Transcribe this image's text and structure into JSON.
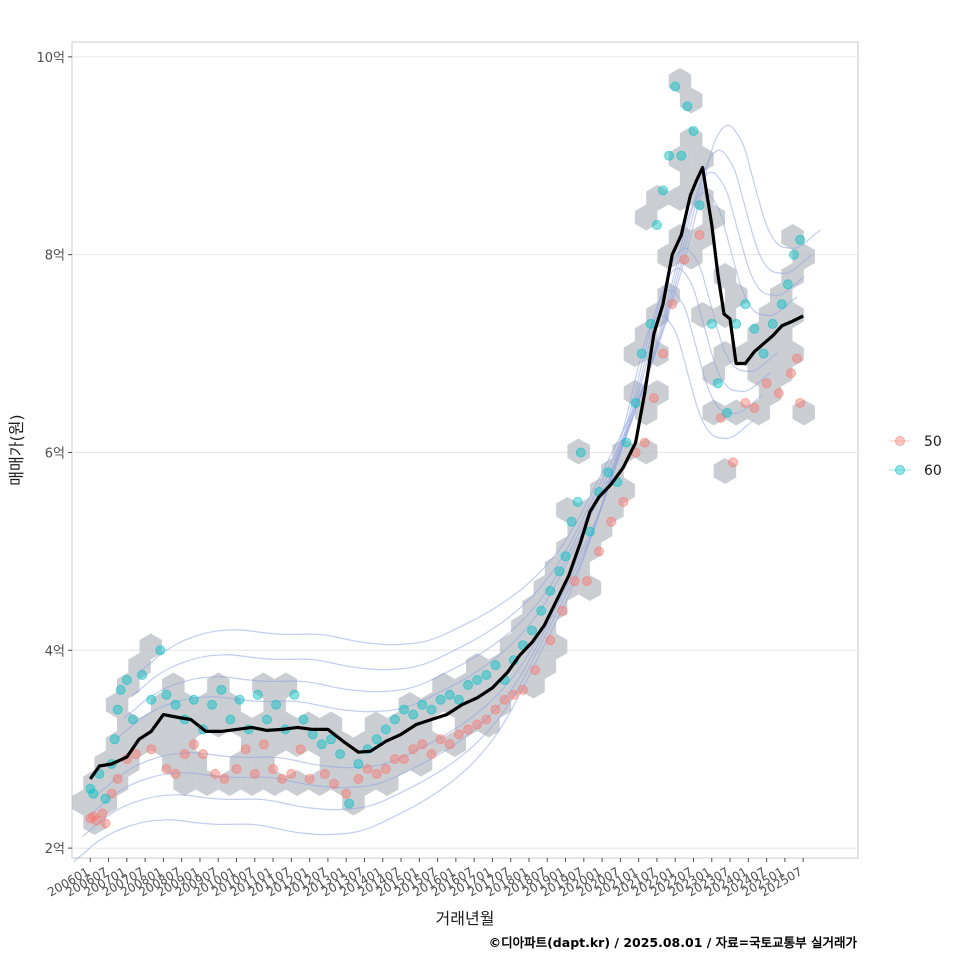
{
  "chart_data": {
    "type": "scatter",
    "xlabel": "거래년월",
    "ylabel": "매매가(원)",
    "caption": "©디아파트(dapt.kr) / 2025.08.01 / 자료=국토교통부 실거래가",
    "x_range": [
      "2005-07",
      "2027-01"
    ],
    "y_range": [
      1.9,
      10.15
    ],
    "y_ticks": [
      {
        "value": 2,
        "label": "2억"
      },
      {
        "value": 4,
        "label": "4억"
      },
      {
        "value": 6,
        "label": "6억"
      },
      {
        "value": 8,
        "label": "8억"
      },
      {
        "value": 10,
        "label": "10억"
      }
    ],
    "x_ticks": [
      {
        "value": "2006-01",
        "label": "200601"
      },
      {
        "value": "2006-07",
        "label": "200607"
      },
      {
        "value": "2007-01",
        "label": "200701"
      },
      {
        "value": "2007-07",
        "label": "200707"
      },
      {
        "value": "2008-01",
        "label": "200801"
      },
      {
        "value": "2008-07",
        "label": "200807"
      },
      {
        "value": "2009-01",
        "label": "200901"
      },
      {
        "value": "2009-07",
        "label": "200907"
      },
      {
        "value": "2010-01",
        "label": "201001"
      },
      {
        "value": "2010-07",
        "label": "201007"
      },
      {
        "value": "2011-01",
        "label": "201101"
      },
      {
        "value": "2011-07",
        "label": "201107"
      },
      {
        "value": "2012-01",
        "label": "201201"
      },
      {
        "value": "2012-07",
        "label": "201207"
      },
      {
        "value": "2013-01",
        "label": "201301"
      },
      {
        "value": "2013-07",
        "label": "201307"
      },
      {
        "value": "2014-01",
        "label": "201401"
      },
      {
        "value": "2014-07",
        "label": "201407"
      },
      {
        "value": "2015-01",
        "label": "201501"
      },
      {
        "value": "2015-07",
        "label": "201507"
      },
      {
        "value": "2016-01",
        "label": "201601"
      },
      {
        "value": "2016-07",
        "label": "201607"
      },
      {
        "value": "2017-01",
        "label": "201701"
      },
      {
        "value": "2017-07",
        "label": "201707"
      },
      {
        "value": "2018-01",
        "label": "201801"
      },
      {
        "value": "2018-07",
        "label": "201807"
      },
      {
        "value": "2019-01",
        "label": "201901"
      },
      {
        "value": "2019-07",
        "label": "201907"
      },
      {
        "value": "2020-01",
        "label": "202001"
      },
      {
        "value": "2020-07",
        "label": "202007"
      },
      {
        "value": "2021-01",
        "label": "202101"
      },
      {
        "value": "2021-07",
        "label": "202107"
      },
      {
        "value": "2022-01",
        "label": "202201"
      },
      {
        "value": "2022-07",
        "label": "202207"
      },
      {
        "value": "2023-01",
        "label": "202301"
      },
      {
        "value": "2023-07",
        "label": "202307"
      },
      {
        "value": "2024-01",
        "label": "202401"
      },
      {
        "value": "2024-07",
        "label": "202407"
      },
      {
        "value": "2025-01",
        "label": "202501"
      },
      {
        "value": "2025-07",
        "label": "202507"
      }
    ],
    "grid": true,
    "legend": {
      "position": "right",
      "title": ""
    },
    "series": [
      {
        "name": "50",
        "color": "#F8766D",
        "points": [
          [
            "2006-01",
            2.3
          ],
          [
            "2006-02",
            2.32
          ],
          [
            "2006-03",
            2.28
          ],
          [
            "2006-05",
            2.35
          ],
          [
            "2006-06",
            2.25
          ],
          [
            "2006-08",
            2.55
          ],
          [
            "2006-10",
            2.7
          ],
          [
            "2007-01",
            2.9
          ],
          [
            "2007-04",
            2.95
          ],
          [
            "2007-09",
            3.0
          ],
          [
            "2008-02",
            2.8
          ],
          [
            "2008-05",
            2.75
          ],
          [
            "2008-08",
            2.95
          ],
          [
            "2008-11",
            3.05
          ],
          [
            "2009-02",
            2.95
          ],
          [
            "2009-06",
            2.75
          ],
          [
            "2009-09",
            2.7
          ],
          [
            "2010-01",
            2.8
          ],
          [
            "2010-04",
            3.0
          ],
          [
            "2010-07",
            2.75
          ],
          [
            "2010-10",
            3.05
          ],
          [
            "2011-01",
            2.8
          ],
          [
            "2011-04",
            2.7
          ],
          [
            "2011-07",
            2.75
          ],
          [
            "2011-10",
            3.0
          ],
          [
            "2012-01",
            2.7
          ],
          [
            "2012-06",
            2.75
          ],
          [
            "2012-09",
            2.65
          ],
          [
            "2013-01",
            2.55
          ],
          [
            "2013-05",
            2.7
          ],
          [
            "2013-08",
            2.8
          ],
          [
            "2013-11",
            2.75
          ],
          [
            "2014-02",
            2.8
          ],
          [
            "2014-05",
            2.9
          ],
          [
            "2014-08",
            2.9
          ],
          [
            "2014-11",
            3.0
          ],
          [
            "2015-02",
            3.05
          ],
          [
            "2015-05",
            2.95
          ],
          [
            "2015-08",
            3.1
          ],
          [
            "2015-11",
            3.05
          ],
          [
            "2016-02",
            3.15
          ],
          [
            "2016-05",
            3.2
          ],
          [
            "2016-08",
            3.25
          ],
          [
            "2016-11",
            3.3
          ],
          [
            "2017-02",
            3.4
          ],
          [
            "2017-05",
            3.5
          ],
          [
            "2017-08",
            3.55
          ],
          [
            "2017-11",
            3.6
          ],
          [
            "2018-03",
            3.8
          ],
          [
            "2018-08",
            4.1
          ],
          [
            "2018-12",
            4.4
          ],
          [
            "2019-04",
            4.7
          ],
          [
            "2019-08",
            4.7
          ],
          [
            "2019-12",
            5.0
          ],
          [
            "2020-04",
            5.3
          ],
          [
            "2020-08",
            5.5
          ],
          [
            "2020-12",
            6.0
          ],
          [
            "2021-03",
            6.1
          ],
          [
            "2021-06",
            6.55
          ],
          [
            "2021-09",
            7.0
          ],
          [
            "2021-12",
            7.5
          ],
          [
            "2022-04",
            7.95
          ],
          [
            "2022-09",
            8.2
          ],
          [
            "2023-04",
            6.35
          ],
          [
            "2023-08",
            5.9
          ],
          [
            "2023-12",
            6.5
          ],
          [
            "2024-03",
            6.45
          ],
          [
            "2024-07",
            6.7
          ],
          [
            "2024-11",
            6.6
          ],
          [
            "2025-03",
            6.8
          ],
          [
            "2025-05",
            6.95
          ],
          [
            "2025-06",
            6.5
          ]
        ]
      },
      {
        "name": "60",
        "color": "#00BFC4",
        "points": [
          [
            "2006-01",
            2.6
          ],
          [
            "2006-02",
            2.55
          ],
          [
            "2006-04",
            2.75
          ],
          [
            "2006-06",
            2.5
          ],
          [
            "2006-08",
            2.85
          ],
          [
            "2006-09",
            3.1
          ],
          [
            "2006-10",
            3.4
          ],
          [
            "2006-11",
            3.6
          ],
          [
            "2007-01",
            3.7
          ],
          [
            "2007-03",
            3.3
          ],
          [
            "2007-06",
            3.75
          ],
          [
            "2007-09",
            3.5
          ],
          [
            "2007-12",
            4.0
          ],
          [
            "2008-02",
            3.55
          ],
          [
            "2008-05",
            3.45
          ],
          [
            "2008-08",
            3.3
          ],
          [
            "2008-11",
            3.5
          ],
          [
            "2009-02",
            3.2
          ],
          [
            "2009-05",
            3.45
          ],
          [
            "2009-08",
            3.6
          ],
          [
            "2009-11",
            3.3
          ],
          [
            "2010-02",
            3.5
          ],
          [
            "2010-05",
            3.2
          ],
          [
            "2010-08",
            3.55
          ],
          [
            "2010-11",
            3.3
          ],
          [
            "2011-02",
            3.45
          ],
          [
            "2011-05",
            3.2
          ],
          [
            "2011-08",
            3.55
          ],
          [
            "2011-11",
            3.3
          ],
          [
            "2012-02",
            3.15
          ],
          [
            "2012-05",
            3.05
          ],
          [
            "2012-08",
            3.1
          ],
          [
            "2012-11",
            2.95
          ],
          [
            "2013-02",
            2.45
          ],
          [
            "2013-05",
            2.85
          ],
          [
            "2013-08",
            3.0
          ],
          [
            "2013-11",
            3.1
          ],
          [
            "2014-02",
            3.2
          ],
          [
            "2014-05",
            3.3
          ],
          [
            "2014-08",
            3.4
          ],
          [
            "2014-11",
            3.35
          ],
          [
            "2015-02",
            3.45
          ],
          [
            "2015-05",
            3.4
          ],
          [
            "2015-08",
            3.5
          ],
          [
            "2015-11",
            3.55
          ],
          [
            "2016-02",
            3.5
          ],
          [
            "2016-05",
            3.65
          ],
          [
            "2016-08",
            3.7
          ],
          [
            "2016-11",
            3.75
          ],
          [
            "2017-02",
            3.85
          ],
          [
            "2017-05",
            3.7
          ],
          [
            "2017-08",
            3.9
          ],
          [
            "2017-11",
            4.05
          ],
          [
            "2018-02",
            4.2
          ],
          [
            "2018-05",
            4.4
          ],
          [
            "2018-08",
            4.6
          ],
          [
            "2018-11",
            4.8
          ],
          [
            "2019-01",
            4.95
          ],
          [
            "2019-03",
            5.3
          ],
          [
            "2019-05",
            5.5
          ],
          [
            "2019-06",
            6.0
          ],
          [
            "2019-09",
            5.2
          ],
          [
            "2019-12",
            5.6
          ],
          [
            "2020-03",
            5.8
          ],
          [
            "2020-06",
            5.7
          ],
          [
            "2020-09",
            6.1
          ],
          [
            "2020-12",
            6.5
          ],
          [
            "2021-02",
            7.0
          ],
          [
            "2021-05",
            7.3
          ],
          [
            "2021-07",
            8.3
          ],
          [
            "2021-09",
            8.65
          ],
          [
            "2021-11",
            9.0
          ],
          [
            "2022-01",
            9.7
          ],
          [
            "2022-03",
            9.0
          ],
          [
            "2022-05",
            9.5
          ],
          [
            "2022-07",
            9.25
          ],
          [
            "2022-09",
            8.5
          ],
          [
            "2023-01",
            7.3
          ],
          [
            "2023-03",
            6.7
          ],
          [
            "2023-06",
            6.4
          ],
          [
            "2023-09",
            7.3
          ],
          [
            "2023-12",
            7.5
          ],
          [
            "2024-03",
            7.25
          ],
          [
            "2024-06",
            7.0
          ],
          [
            "2024-09",
            7.3
          ],
          [
            "2024-12",
            7.5
          ],
          [
            "2025-02",
            7.7
          ],
          [
            "2025-04",
            8.0
          ],
          [
            "2025-06",
            8.15
          ]
        ]
      }
    ],
    "trend_line": {
      "color": "#000000",
      "points": [
        [
          "2006-01",
          2.7
        ],
        [
          "2006-04",
          2.83
        ],
        [
          "2006-08",
          2.85
        ],
        [
          "2007-01",
          2.92
        ],
        [
          "2007-05",
          3.1
        ],
        [
          "2007-09",
          3.18
        ],
        [
          "2008-01",
          3.35
        ],
        [
          "2008-06",
          3.32
        ],
        [
          "2008-10",
          3.3
        ],
        [
          "2009-03",
          3.18
        ],
        [
          "2009-08",
          3.18
        ],
        [
          "2010-01",
          3.2
        ],
        [
          "2010-06",
          3.22
        ],
        [
          "2010-11",
          3.19
        ],
        [
          "2011-04",
          3.2
        ],
        [
          "2011-09",
          3.22
        ],
        [
          "2012-02",
          3.2
        ],
        [
          "2012-07",
          3.2
        ],
        [
          "2012-12",
          3.08
        ],
        [
          "2013-05",
          2.97
        ],
        [
          "2013-09",
          2.98
        ],
        [
          "2014-02",
          3.08
        ],
        [
          "2014-07",
          3.15
        ],
        [
          "2014-12",
          3.25
        ],
        [
          "2015-05",
          3.3
        ],
        [
          "2015-10",
          3.35
        ],
        [
          "2016-03",
          3.45
        ],
        [
          "2016-08",
          3.52
        ],
        [
          "2017-01",
          3.62
        ],
        [
          "2017-06",
          3.78
        ],
        [
          "2017-10",
          3.95
        ],
        [
          "2018-02",
          4.08
        ],
        [
          "2018-06",
          4.25
        ],
        [
          "2018-10",
          4.5
        ],
        [
          "2019-02",
          4.75
        ],
        [
          "2019-06",
          5.1
        ],
        [
          "2019-09",
          5.4
        ],
        [
          "2019-12",
          5.55
        ],
        [
          "2020-04",
          5.68
        ],
        [
          "2020-08",
          5.85
        ],
        [
          "2020-12",
          6.1
        ],
        [
          "2021-03",
          6.6
        ],
        [
          "2021-06",
          7.2
        ],
        [
          "2021-09",
          7.5
        ],
        [
          "2021-12",
          8.0
        ],
        [
          "2022-03",
          8.2
        ],
        [
          "2022-06",
          8.6
        ],
        [
          "2022-08",
          8.75
        ],
        [
          "2022-10",
          8.88
        ],
        [
          "2023-01",
          8.3
        ],
        [
          "2023-03",
          7.8
        ],
        [
          "2023-05",
          7.4
        ],
        [
          "2023-07",
          7.35
        ],
        [
          "2023-09",
          6.9
        ],
        [
          "2023-12",
          6.9
        ],
        [
          "2024-03",
          7.02
        ],
        [
          "2024-06",
          7.1
        ],
        [
          "2024-09",
          7.18
        ],
        [
          "2024-12",
          7.28
        ],
        [
          "2025-03",
          7.32
        ],
        [
          "2025-07",
          7.38
        ]
      ]
    }
  }
}
